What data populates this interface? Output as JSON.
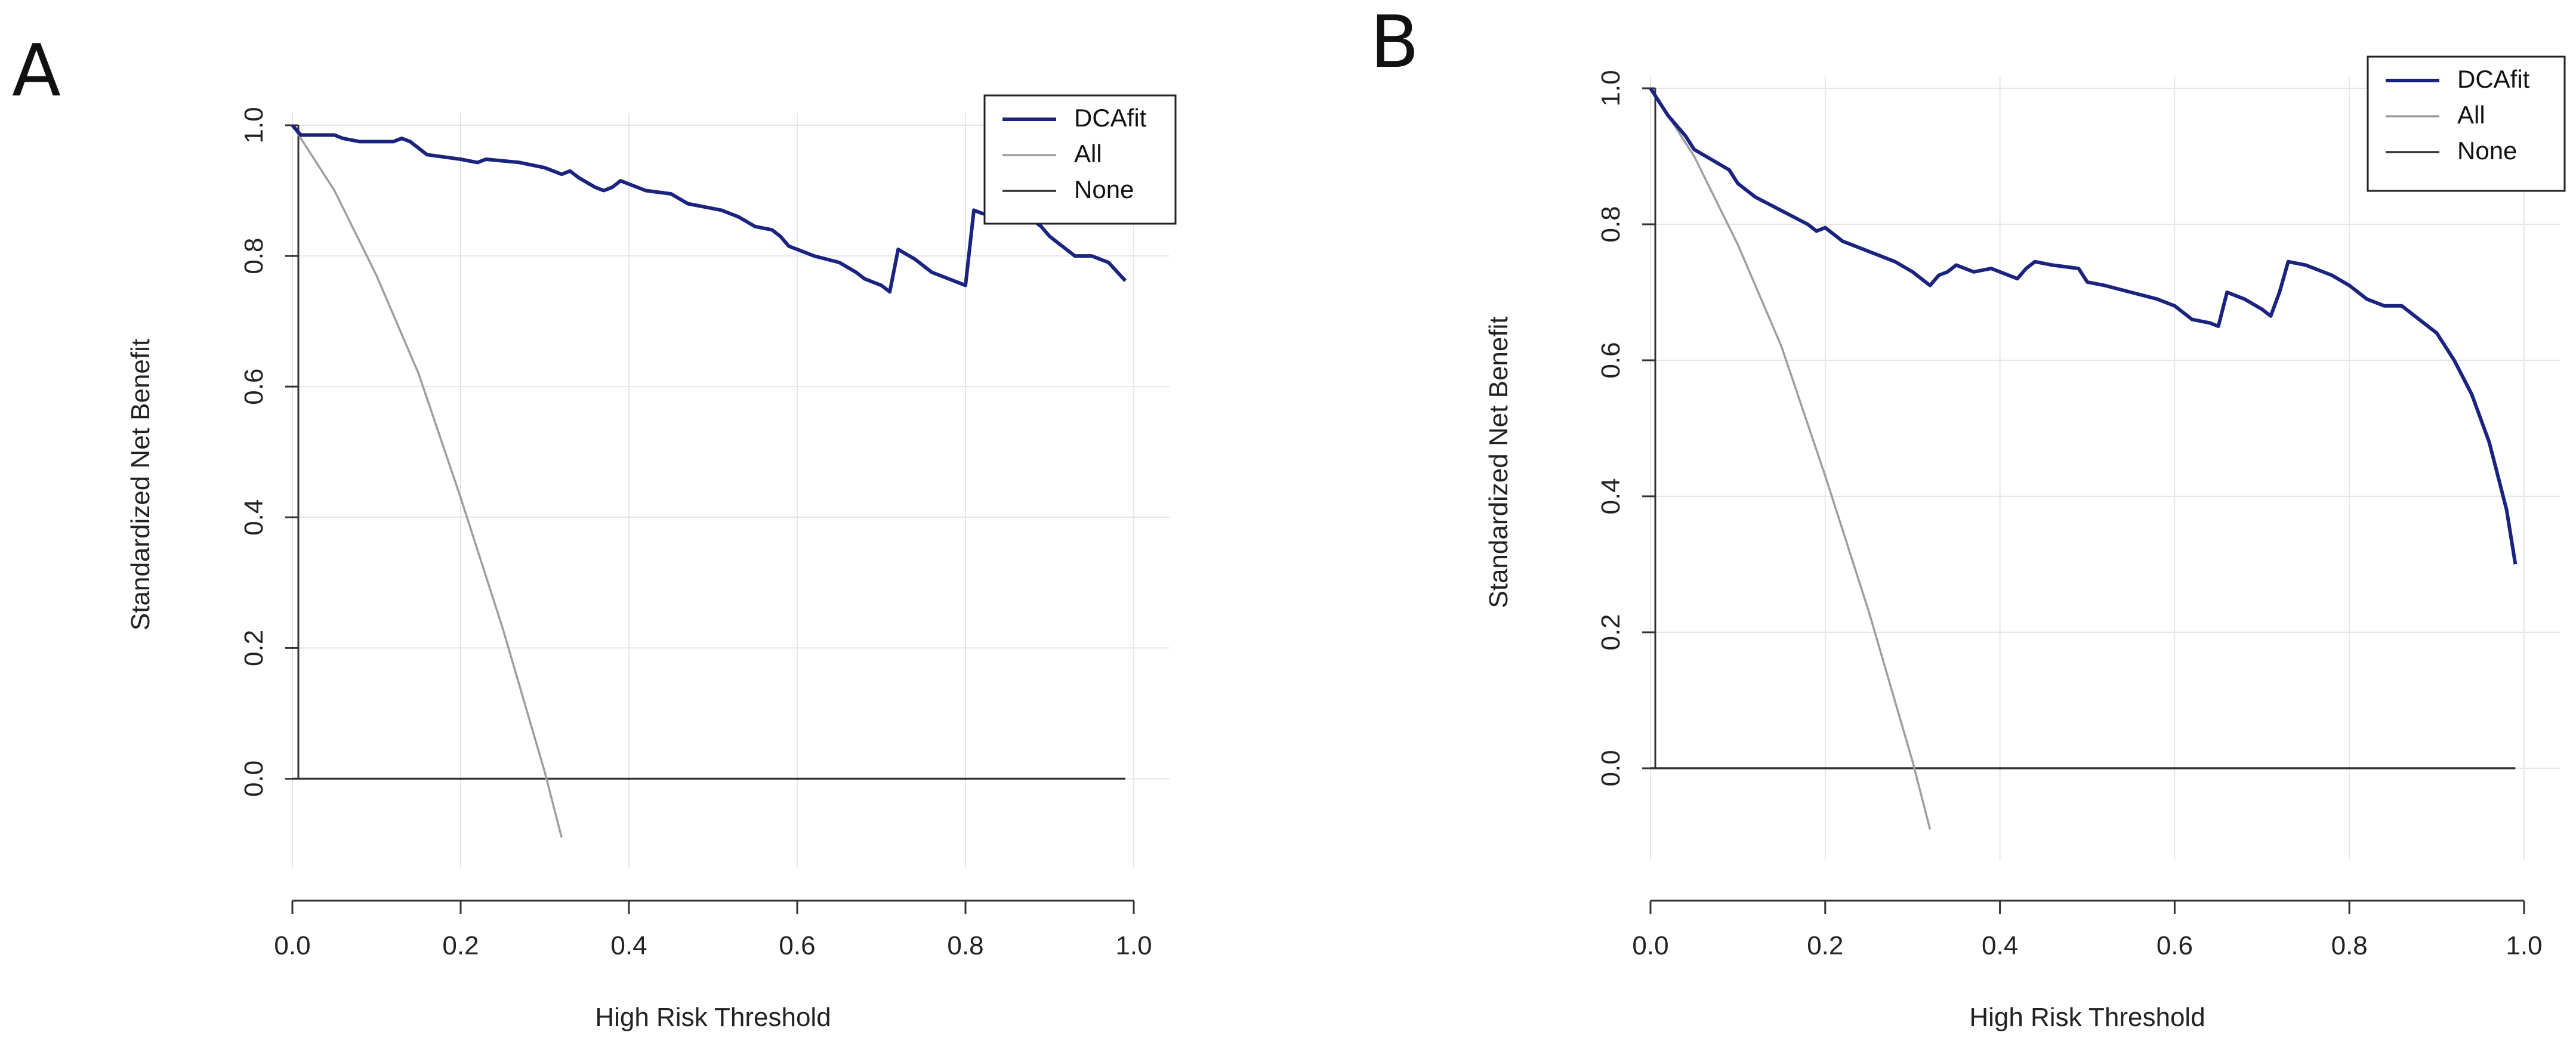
{
  "chart_data": [
    {
      "panel_label": "A",
      "type": "line",
      "xlabel": "High Risk Threshold",
      "ylabel": "Standardized Net Benefit",
      "xlim": [
        0,
        1
      ],
      "ylim": [
        -0.1,
        1.0
      ],
      "xticks": [
        "0.0",
        "0.2",
        "0.4",
        "0.6",
        "0.8",
        "1.0"
      ],
      "yticks": [
        "0.0",
        "0.2",
        "0.4",
        "0.6",
        "0.8",
        "1.0"
      ],
      "grid": true,
      "legend_position": "top-right",
      "series": [
        {
          "name": "DCAfit",
          "color": "#1a237e",
          "x": [
            0.0,
            0.01,
            0.05,
            0.06,
            0.08,
            0.12,
            0.13,
            0.14,
            0.16,
            0.2,
            0.22,
            0.23,
            0.27,
            0.3,
            0.32,
            0.33,
            0.34,
            0.36,
            0.37,
            0.38,
            0.39,
            0.4,
            0.42,
            0.45,
            0.47,
            0.49,
            0.51,
            0.53,
            0.55,
            0.57,
            0.58,
            0.59,
            0.6,
            0.62,
            0.65,
            0.67,
            0.68,
            0.7,
            0.71,
            0.72,
            0.74,
            0.76,
            0.78,
            0.8,
            0.81,
            0.82,
            0.84,
            0.86,
            0.88,
            0.89,
            0.9,
            0.91,
            0.93,
            0.95,
            0.97,
            0.99
          ],
          "y": [
            1.0,
            0.985,
            0.985,
            0.98,
            0.975,
            0.975,
            0.98,
            0.975,
            0.955,
            0.948,
            0.943,
            0.948,
            0.943,
            0.935,
            0.925,
            0.93,
            0.92,
            0.905,
            0.9,
            0.905,
            0.915,
            0.91,
            0.9,
            0.895,
            0.88,
            0.875,
            0.87,
            0.86,
            0.845,
            0.84,
            0.83,
            0.815,
            0.81,
            0.8,
            0.79,
            0.775,
            0.765,
            0.755,
            0.745,
            0.81,
            0.795,
            0.775,
            0.765,
            0.755,
            0.87,
            0.865,
            0.86,
            0.86,
            0.855,
            0.845,
            0.83,
            0.82,
            0.8,
            0.8,
            0.79,
            0.762
          ]
        },
        {
          "name": "All",
          "color": "#9e9e9e",
          "x": [
            0.0,
            0.05,
            0.1,
            0.15,
            0.2,
            0.25,
            0.3,
            0.32
          ],
          "y": [
            1.0,
            0.9,
            0.77,
            0.62,
            0.43,
            0.23,
            0.01,
            -0.09
          ]
        },
        {
          "name": "None",
          "color": "#333333",
          "x": [
            0.0,
            0.99
          ],
          "y": [
            0.0,
            0.0
          ]
        }
      ]
    },
    {
      "panel_label": "B",
      "type": "line",
      "xlabel": "High Risk Threshold",
      "ylabel": "Standardized Net Benefit",
      "xlim": [
        0,
        1
      ],
      "ylim": [
        -0.1,
        1.0
      ],
      "xticks": [
        "0.0",
        "0.2",
        "0.4",
        "0.6",
        "0.8",
        "1.0"
      ],
      "yticks": [
        "0.0",
        "0.2",
        "0.4",
        "0.6",
        "0.8",
        "1.0"
      ],
      "grid": true,
      "legend_position": "top-right",
      "series": [
        {
          "name": "DCAfit",
          "color": "#1a237e",
          "x": [
            0.0,
            0.02,
            0.04,
            0.05,
            0.07,
            0.09,
            0.1,
            0.12,
            0.15,
            0.18,
            0.19,
            0.2,
            0.22,
            0.25,
            0.28,
            0.3,
            0.31,
            0.32,
            0.33,
            0.34,
            0.35,
            0.37,
            0.39,
            0.4,
            0.42,
            0.43,
            0.44,
            0.46,
            0.49,
            0.5,
            0.52,
            0.55,
            0.58,
            0.6,
            0.62,
            0.64,
            0.65,
            0.66,
            0.68,
            0.7,
            0.71,
            0.72,
            0.73,
            0.75,
            0.76,
            0.78,
            0.8,
            0.82,
            0.84,
            0.86,
            0.88,
            0.9,
            0.92,
            0.94,
            0.96,
            0.97,
            0.98,
            0.99
          ],
          "y": [
            1.0,
            0.96,
            0.93,
            0.91,
            0.895,
            0.88,
            0.86,
            0.84,
            0.82,
            0.8,
            0.79,
            0.795,
            0.775,
            0.76,
            0.745,
            0.73,
            0.72,
            0.71,
            0.725,
            0.73,
            0.74,
            0.73,
            0.735,
            0.73,
            0.72,
            0.735,
            0.745,
            0.74,
            0.735,
            0.715,
            0.71,
            0.7,
            0.69,
            0.68,
            0.66,
            0.655,
            0.65,
            0.7,
            0.69,
            0.675,
            0.665,
            0.7,
            0.745,
            0.74,
            0.735,
            0.725,
            0.71,
            0.69,
            0.68,
            0.68,
            0.66,
            0.64,
            0.6,
            0.55,
            0.48,
            0.43,
            0.38,
            0.3
          ]
        },
        {
          "name": "All",
          "color": "#9e9e9e",
          "x": [
            0.0,
            0.05,
            0.1,
            0.15,
            0.2,
            0.25,
            0.3,
            0.32
          ],
          "y": [
            1.0,
            0.9,
            0.77,
            0.62,
            0.43,
            0.23,
            0.01,
            -0.09
          ]
        },
        {
          "name": "None",
          "color": "#333333",
          "x": [
            0.0,
            0.99
          ],
          "y": [
            0.0,
            0.0
          ]
        }
      ]
    }
  ]
}
